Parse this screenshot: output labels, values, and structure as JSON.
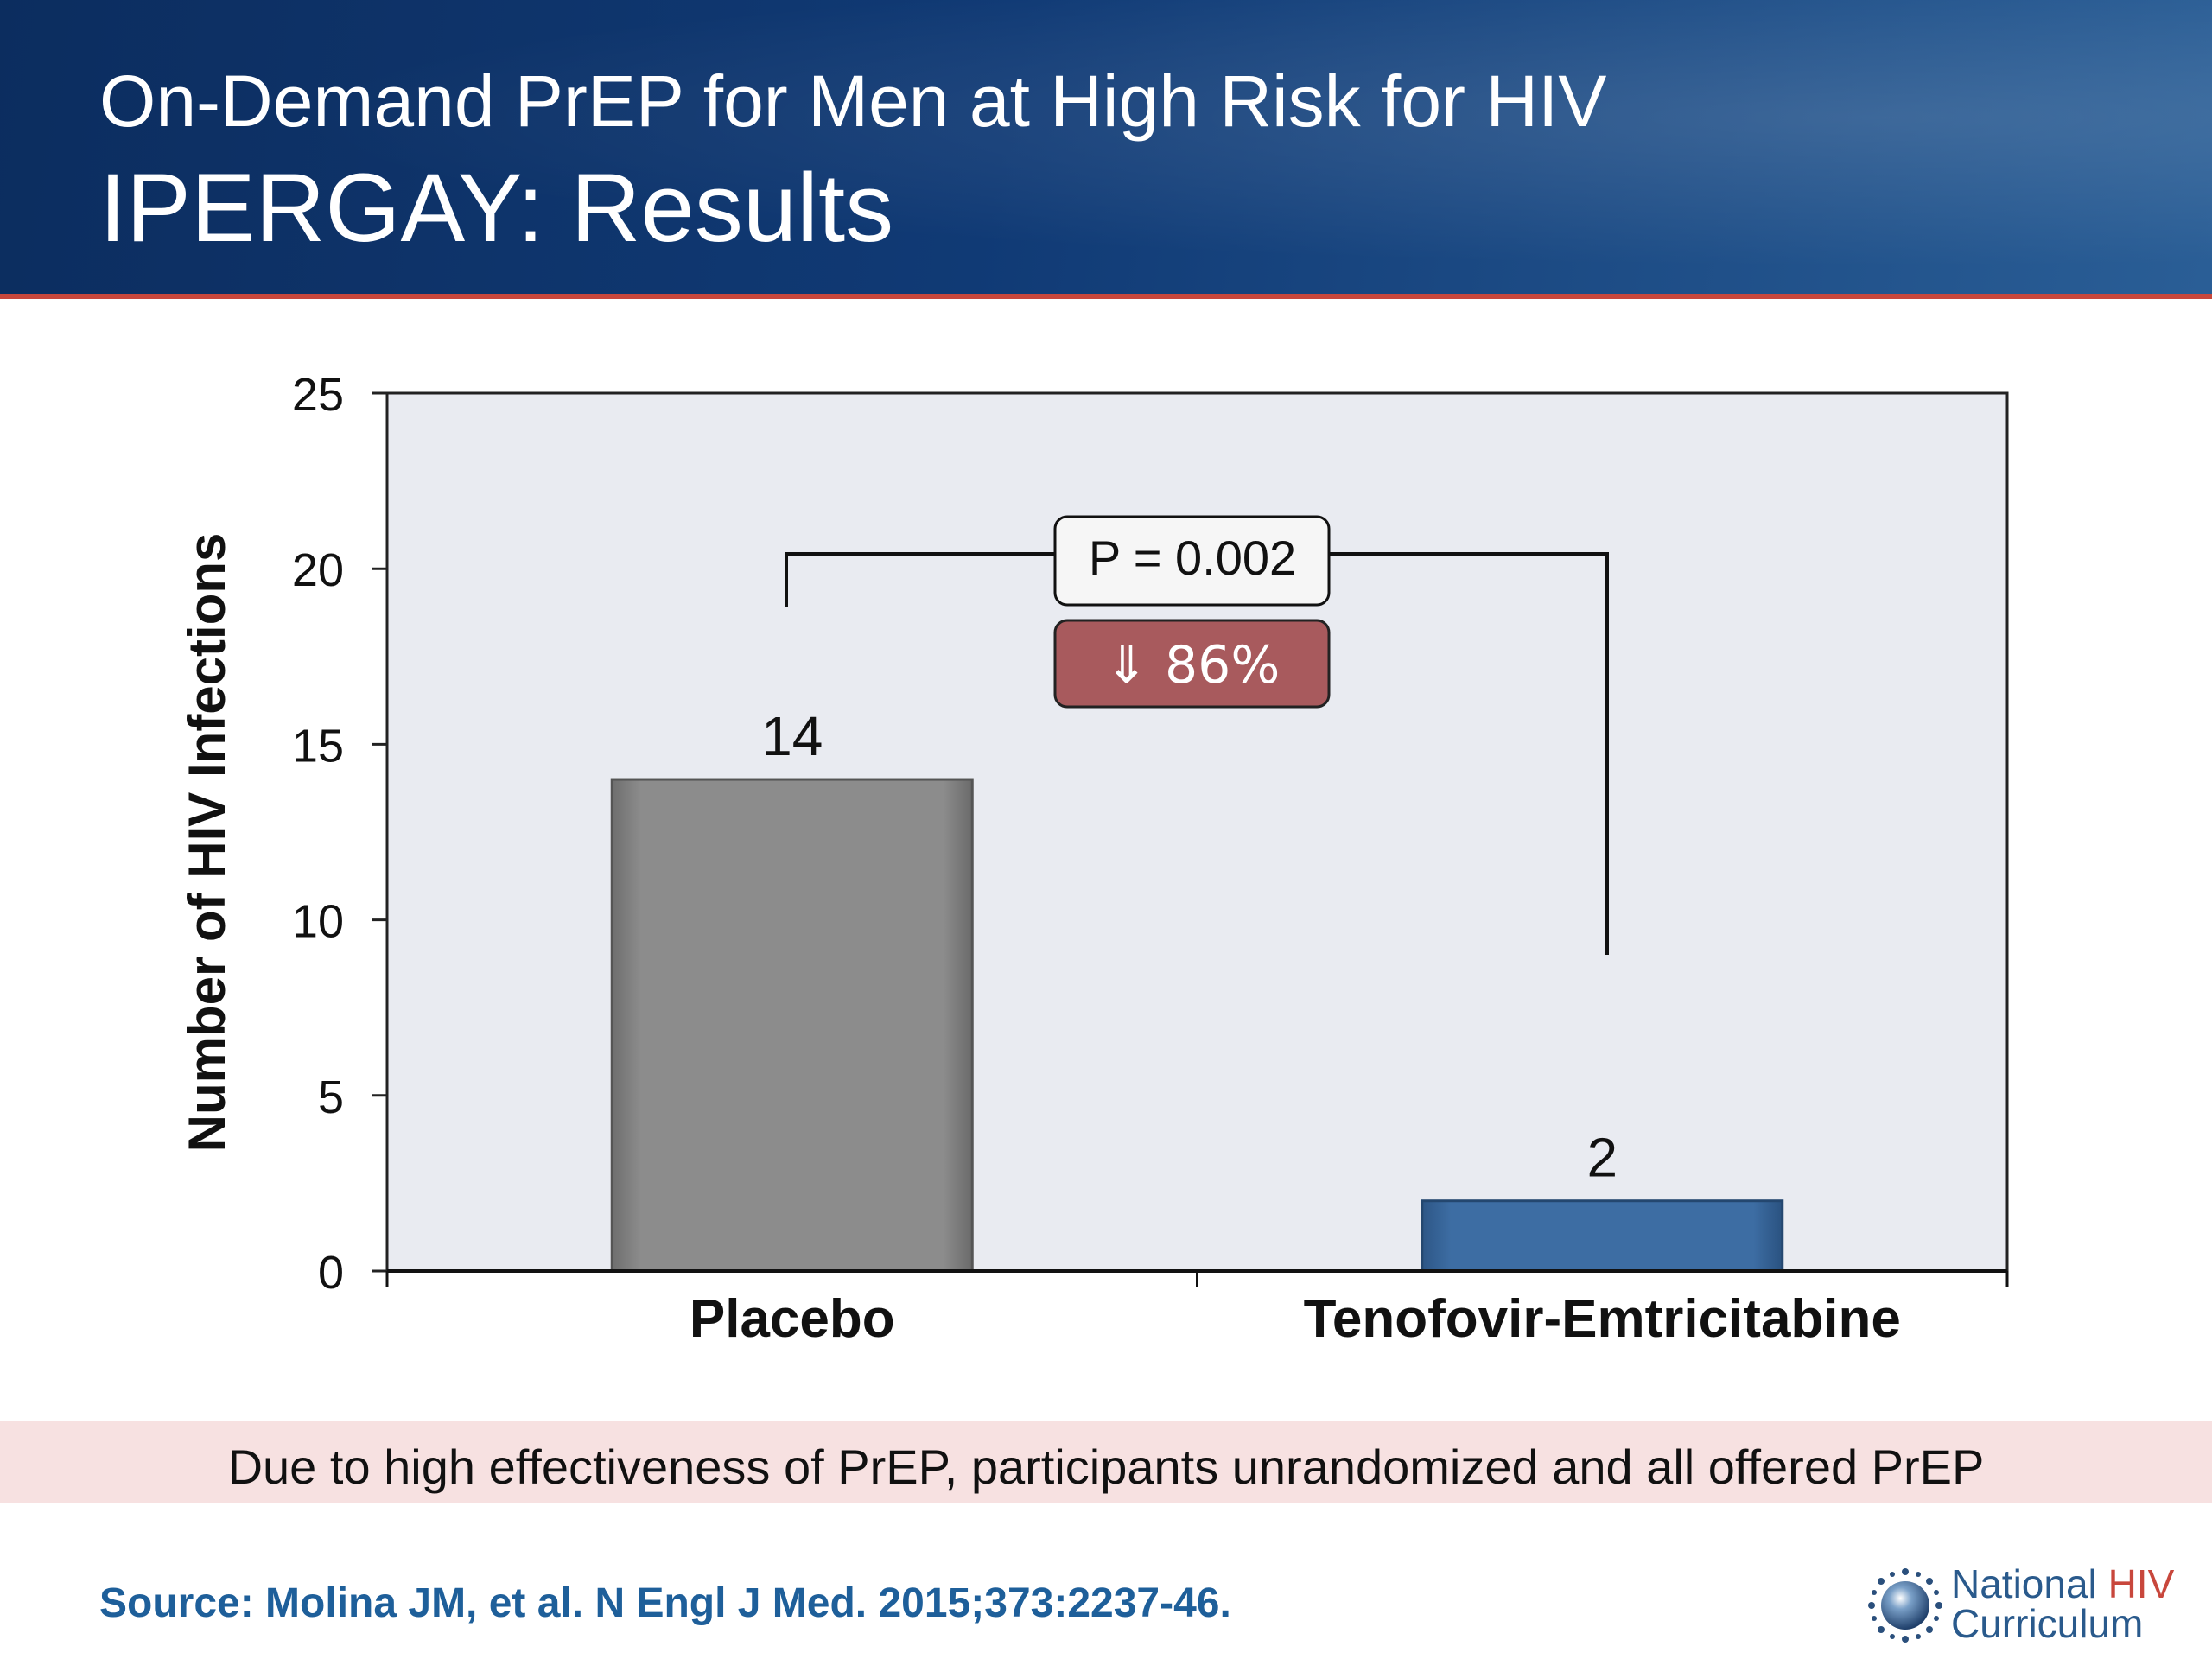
{
  "header": {
    "title": "On-Demand PrEP for Men at High Risk for HIV",
    "subtitle": "IPERGAY: Results"
  },
  "chart_data": {
    "type": "bar",
    "categories": [
      "Placebo",
      "Tenofovir-Emtricitabine"
    ],
    "values": [
      14,
      2
    ],
    "data_labels": [
      "14",
      "2"
    ],
    "ylabel": "Number of HIV Infections",
    "xlabel": "",
    "ylim": [
      0,
      25
    ],
    "yticks": [
      0,
      5,
      10,
      15,
      20,
      25
    ],
    "bar_colors": [
      "#8a8a8a",
      "#3a689e"
    ],
    "plot_background": "#e9ebf1",
    "annotations": {
      "p_value": "P = 0.002",
      "reduction": "⇓ 86%",
      "reduction_color": "#a85a5d"
    }
  },
  "note": "Due to high effectiveness of PrEP, participants unrandomized and all offered PrEP",
  "source": "Source: Molina JM, et al. N Engl J Med. 2015;373:2237-46.",
  "logo": {
    "line1_part1": "National ",
    "line1_part2": "HIV",
    "line2": "Curriculum",
    "accent_color": "#c8473c"
  }
}
